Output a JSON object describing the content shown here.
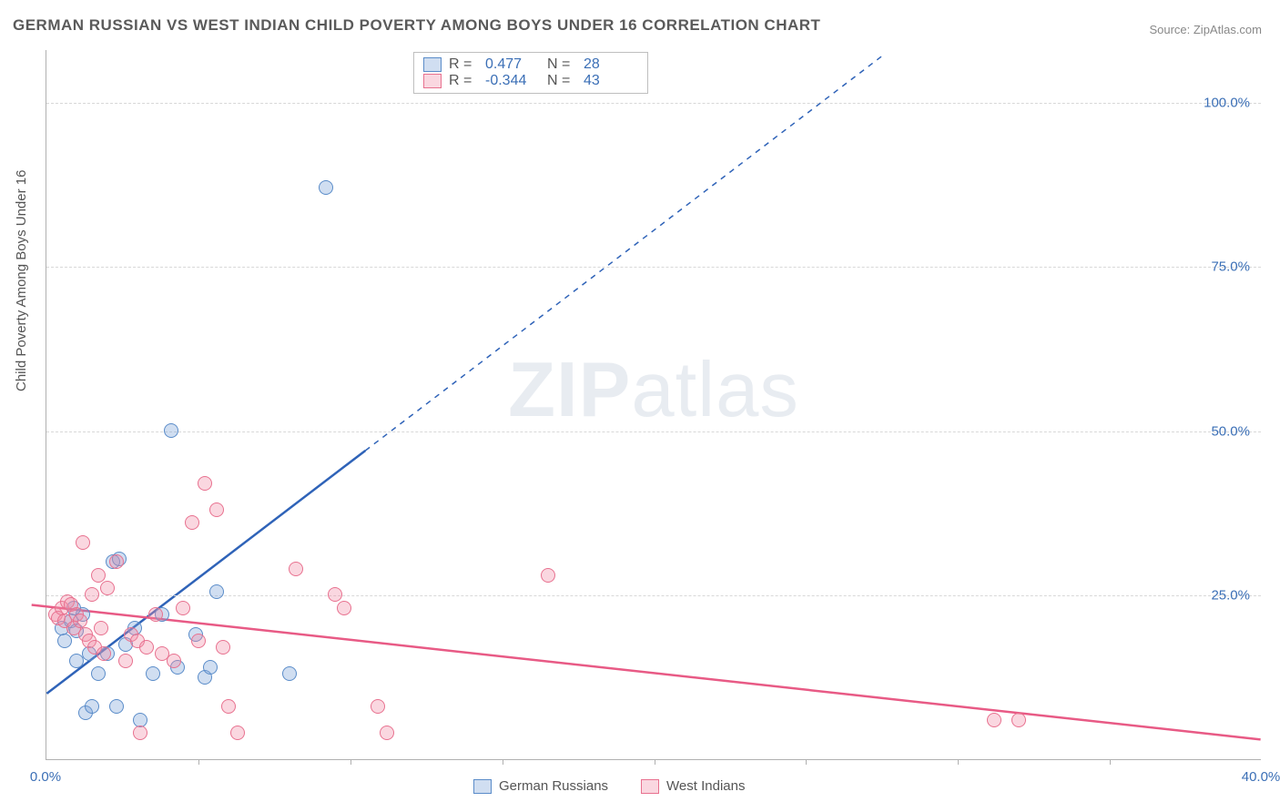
{
  "title": "GERMAN RUSSIAN VS WEST INDIAN CHILD POVERTY AMONG BOYS UNDER 16 CORRELATION CHART",
  "source_label": "Source: ",
  "source_name": "ZipAtlas.com",
  "ylabel": "Child Poverty Among Boys Under 16",
  "watermark": {
    "bold": "ZIP",
    "light": "atlas"
  },
  "chart": {
    "type": "scatter",
    "xlim": [
      0,
      40
    ],
    "ylim": [
      0,
      108
    ],
    "x_ticks": [
      0,
      40
    ],
    "x_tick_labels": [
      "0.0%",
      "40.0%"
    ],
    "x_minor_tick_interval": 5,
    "y_ticks": [
      25,
      50,
      75,
      100
    ],
    "y_tick_labels": [
      "25.0%",
      "50.0%",
      "75.0%",
      "100.0%"
    ],
    "grid_color": "#d8d8d8",
    "axis_color": "#b0b0b0",
    "tick_label_color": "#3b6fb6",
    "background_color": "#ffffff",
    "point_radius": 8,
    "point_border_width": 1.5,
    "line_width": 2.5,
    "series": [
      {
        "name": "German Russians",
        "fill": "rgba(120,160,215,0.35)",
        "stroke": "#5a8cc9",
        "line_color": "#2f63b8",
        "regression": {
          "x1": 0,
          "y1": 10,
          "x2": 10.5,
          "y2": 47,
          "extend_dashed_to_x": 27.5,
          "extend_dashed_to_y": 107
        },
        "R": "0.477",
        "N": "28",
        "data": [
          [
            0.5,
            20
          ],
          [
            0.6,
            18
          ],
          [
            0.8,
            21
          ],
          [
            1.0,
            19.5
          ],
          [
            1.2,
            22
          ],
          [
            1.4,
            16
          ],
          [
            1.0,
            15
          ],
          [
            1.3,
            7
          ],
          [
            2.3,
            8
          ],
          [
            3.1,
            6
          ],
          [
            2.0,
            16
          ],
          [
            2.6,
            17.5
          ],
          [
            2.2,
            30
          ],
          [
            2.4,
            30.5
          ],
          [
            3.5,
            13
          ],
          [
            4.3,
            14
          ],
          [
            5.2,
            12.5
          ],
          [
            5.4,
            14
          ],
          [
            4.1,
            50
          ],
          [
            5.6,
            25.5
          ],
          [
            8.0,
            13
          ],
          [
            9.2,
            87
          ],
          [
            3.8,
            22
          ],
          [
            4.9,
            19
          ],
          [
            1.7,
            13
          ],
          [
            0.9,
            23
          ],
          [
            2.9,
            20
          ],
          [
            1.5,
            8
          ]
        ]
      },
      {
        "name": "West Indians",
        "fill": "rgba(240,140,165,0.35)",
        "stroke": "#e8718f",
        "line_color": "#e85a85",
        "regression": {
          "x1": -0.5,
          "y1": 23.5,
          "x2": 40,
          "y2": 3
        },
        "R": "-0.344",
        "N": "43",
        "data": [
          [
            0.3,
            22
          ],
          [
            0.4,
            21.5
          ],
          [
            0.5,
            23
          ],
          [
            0.6,
            21
          ],
          [
            0.7,
            24
          ],
          [
            0.8,
            23.5
          ],
          [
            0.9,
            20
          ],
          [
            1.0,
            22
          ],
          [
            1.1,
            21
          ],
          [
            1.2,
            33
          ],
          [
            1.3,
            19
          ],
          [
            1.4,
            18
          ],
          [
            1.5,
            25
          ],
          [
            1.6,
            17
          ],
          [
            1.7,
            28
          ],
          [
            1.8,
            20
          ],
          [
            1.9,
            16
          ],
          [
            2.0,
            26
          ],
          [
            2.3,
            30
          ],
          [
            2.6,
            15
          ],
          [
            2.8,
            19
          ],
          [
            3.0,
            18
          ],
          [
            3.1,
            4
          ],
          [
            3.3,
            17
          ],
          [
            3.6,
            22
          ],
          [
            3.8,
            16
          ],
          [
            4.2,
            15
          ],
          [
            4.5,
            23
          ],
          [
            4.8,
            36
          ],
          [
            5.0,
            18
          ],
          [
            5.2,
            42
          ],
          [
            5.6,
            38
          ],
          [
            5.8,
            17
          ],
          [
            6.0,
            8
          ],
          [
            6.3,
            4
          ],
          [
            8.2,
            29
          ],
          [
            9.5,
            25
          ],
          [
            9.8,
            23
          ],
          [
            10.9,
            8
          ],
          [
            11.2,
            4
          ],
          [
            16.5,
            28
          ],
          [
            31.2,
            6
          ],
          [
            32.0,
            6
          ]
        ]
      }
    ]
  },
  "stats_box": {
    "r_label": "R =",
    "n_label": "N ="
  },
  "legend": {
    "items": [
      "German Russians",
      "West Indians"
    ]
  }
}
